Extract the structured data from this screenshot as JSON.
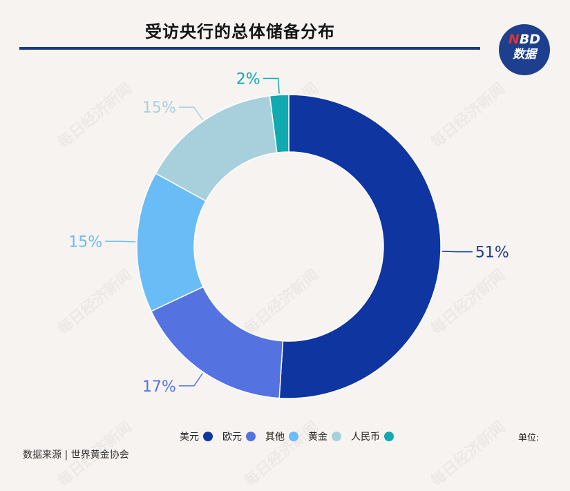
{
  "title": "受访央行的总体储备分布",
  "badge": {
    "brand_n": "N",
    "brand_rest": "BD",
    "sub": "数据"
  },
  "watermark": "每日经济新闻",
  "unit": "单位:",
  "source": "数据来源 | 世界黄金协会",
  "chart_data": {
    "type": "pie",
    "donut": true,
    "title": "受访央行的总体储备分布",
    "categories": [
      "美元",
      "欧元",
      "其他",
      "黄金",
      "人民币"
    ],
    "values": [
      51,
      17,
      15,
      15,
      2
    ],
    "labels": [
      "51%",
      "17%",
      "15%",
      "15%",
      "2%"
    ],
    "colors": [
      "#0f35a0",
      "#5472e0",
      "#69bcf5",
      "#a8d0dc",
      "#10aab0"
    ],
    "legend_position": "bottom"
  }
}
